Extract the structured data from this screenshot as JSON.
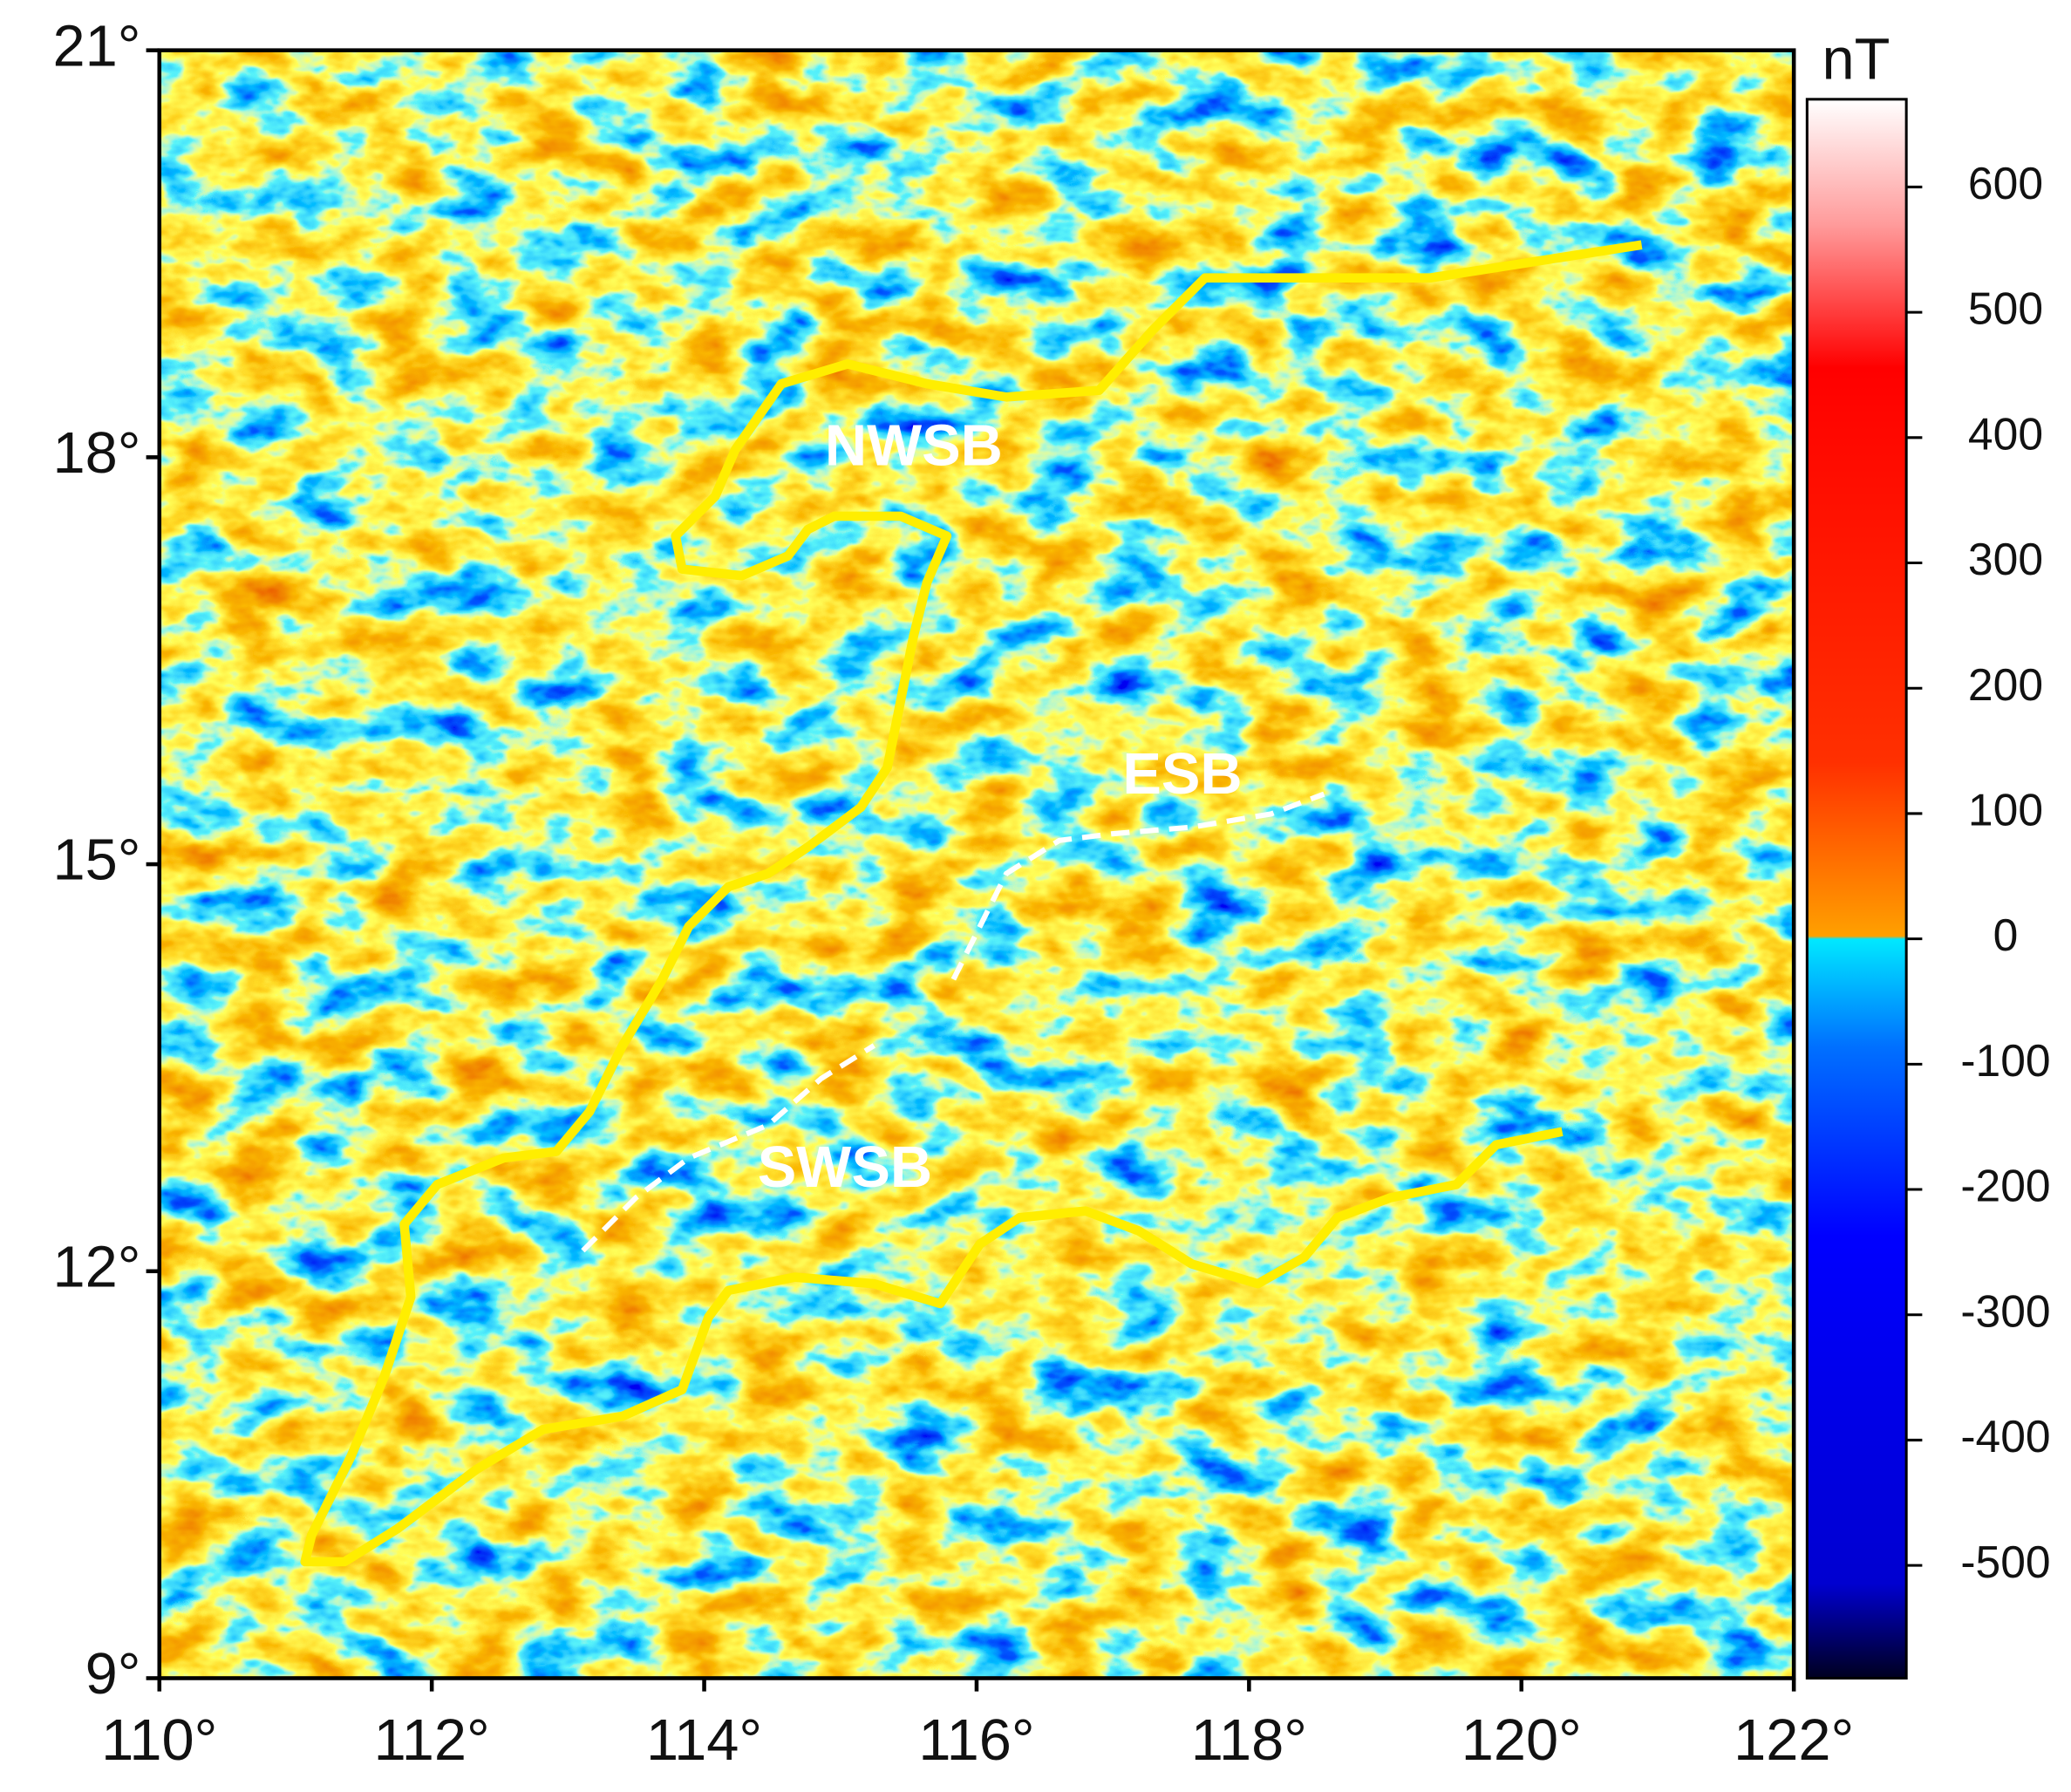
{
  "map": {
    "xlim": [
      110,
      122
    ],
    "ylim": [
      9,
      21
    ],
    "xticks": [
      {
        "value": 110,
        "label": "110°"
      },
      {
        "value": 112,
        "label": "112°"
      },
      {
        "value": 114,
        "label": "114°"
      },
      {
        "value": 116,
        "label": "116°"
      },
      {
        "value": 118,
        "label": "118°"
      },
      {
        "value": 120,
        "label": "120°"
      },
      {
        "value": 122,
        "label": "122°"
      }
    ],
    "yticks": [
      {
        "value": 9,
        "label": "9°"
      },
      {
        "value": 12,
        "label": "12°"
      },
      {
        "value": 15,
        "label": "15°"
      },
      {
        "value": 18,
        "label": "18°"
      },
      {
        "value": 21,
        "label": "21°"
      }
    ],
    "colorbar": {
      "label": "nT",
      "lim": [
        -590,
        670
      ],
      "ticks": [
        600,
        500,
        400,
        300,
        200,
        100,
        0,
        -100,
        -200,
        -300,
        -400,
        -500
      ]
    },
    "region_labels": [
      "NWSB",
      "ESB",
      "SWSB"
    ]
  }
}
